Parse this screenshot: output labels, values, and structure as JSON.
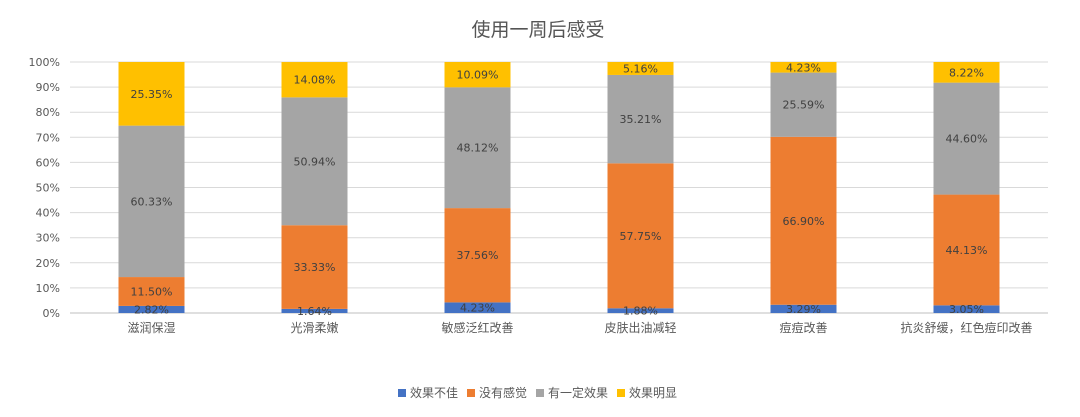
{
  "chart_data": {
    "type": "bar",
    "stacked": true,
    "percent": true,
    "title": "使用一周后感受",
    "categories": [
      "滋润保湿",
      "光滑柔嫩",
      "敏感泛红改善",
      "皮肤出油减轻",
      "痘痘改善",
      "抗炎舒缓，红色痘印改善"
    ],
    "series": [
      {
        "name": "效果不佳",
        "color": "#4472C4",
        "values": [
          2.82,
          1.64,
          4.23,
          1.88,
          3.29,
          3.05
        ],
        "labels": [
          "2.82%",
          "1.64%",
          "4.23%",
          "1.88%",
          "3.29%",
          "3.05%"
        ]
      },
      {
        "name": "没有感觉",
        "color": "#ED7D31",
        "values": [
          11.5,
          33.33,
          37.56,
          57.75,
          66.9,
          44.13
        ],
        "labels": [
          "11.50%",
          "33.33%",
          "37.56%",
          "57.75%",
          "66.90%",
          "44.13%"
        ]
      },
      {
        "name": "有一定效果",
        "color": "#A5A5A5",
        "values": [
          60.33,
          50.94,
          48.12,
          35.21,
          25.59,
          44.6
        ],
        "labels": [
          "60.33%",
          "50.94%",
          "48.12%",
          "35.21%",
          "25.59%",
          "44.60%"
        ]
      },
      {
        "name": "效果明显",
        "color": "#FFC000",
        "values": [
          25.35,
          14.08,
          10.09,
          5.16,
          4.23,
          8.22
        ],
        "labels": [
          "25.35%",
          "14.08%",
          "10.09%",
          "5.16%",
          "4.23%",
          "8.22%"
        ]
      }
    ],
    "ylim": [
      0,
      100
    ],
    "yticks": [
      "0%",
      "10%",
      "20%",
      "30%",
      "40%",
      "50%",
      "60%",
      "70%",
      "80%",
      "90%",
      "100%"
    ],
    "grid": true,
    "legend_position": "bottom"
  }
}
